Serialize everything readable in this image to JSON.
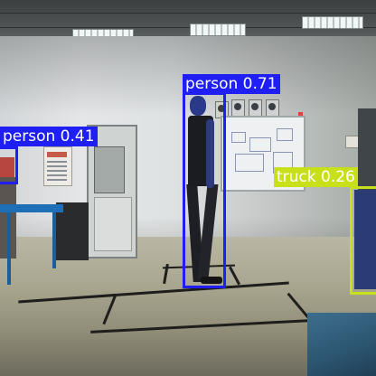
{
  "colors": {
    "person": "#1f1ff5",
    "truck": "#c8e01a"
  },
  "detections": [
    {
      "label": "person 0.71",
      "class": "person",
      "confidence": 0.71
    },
    {
      "label": "person 0.41",
      "class": "person",
      "confidence": 0.41
    },
    {
      "label": "truck 0.26",
      "class": "truck",
      "confidence": 0.26
    }
  ]
}
